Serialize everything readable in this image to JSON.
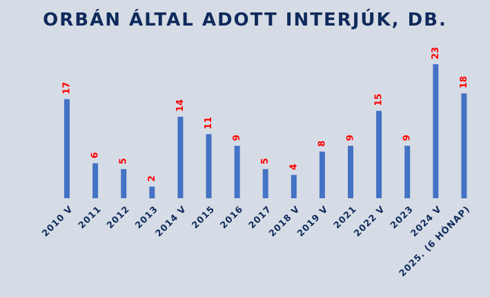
{
  "chart_data": {
    "type": "bar",
    "title": "ORBÁN ÁLTAL ADOTT INTERJÚK, DB.",
    "categories": [
      "2010 V",
      "2011",
      "2012",
      "2013",
      "2014 V",
      "2015",
      "2016",
      "2017",
      "2018 V",
      "2019 V",
      "2021",
      "2022 V",
      "2023",
      "2024 V",
      "2025. (6 HÓNAP)"
    ],
    "values": [
      17,
      6,
      5,
      2,
      14,
      11,
      9,
      5,
      4,
      8,
      9,
      15,
      9,
      23,
      18
    ],
    "xlabel": "",
    "ylabel": "",
    "ylim": [
      0,
      23
    ],
    "grid": false,
    "legend": "none",
    "colors": {
      "background": "#d6dce5",
      "bar": "#4472c4",
      "data_label": "#ff0000",
      "axis_text": "#0f2a5c"
    }
  }
}
